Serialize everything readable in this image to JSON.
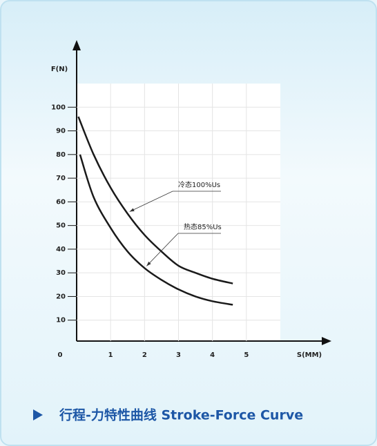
{
  "chart_data": {
    "type": "line",
    "caption": "行程-力特性曲线 Stroke-Force Curve",
    "y_label": "F(N)",
    "x_label": "S(MM)",
    "xlim": [
      0,
      6
    ],
    "ylim": [
      0,
      110
    ],
    "xticks": [
      0,
      1,
      2,
      3,
      4,
      5
    ],
    "yticks": [
      10,
      20,
      30,
      40,
      50,
      60,
      70,
      80,
      90,
      100
    ],
    "grid": true,
    "series": [
      {
        "name": "冷态100%Us",
        "color": "#1a1a1a",
        "x": [
          0.05,
          0.5,
          1,
          1.5,
          2,
          2.5,
          3,
          3.5,
          4,
          4.6
        ],
        "values": [
          96,
          80,
          66,
          55,
          46,
          39,
          33,
          30,
          27.5,
          25.5
        ]
      },
      {
        "name": "热态85%Us",
        "color": "#1a1a1a",
        "x": [
          0.1,
          0.5,
          1,
          1.5,
          2,
          2.5,
          3,
          3.5,
          4,
          4.6
        ],
        "values": [
          80,
          62,
          49,
          39,
          32,
          27,
          23,
          20,
          18,
          16.5
        ]
      }
    ]
  }
}
